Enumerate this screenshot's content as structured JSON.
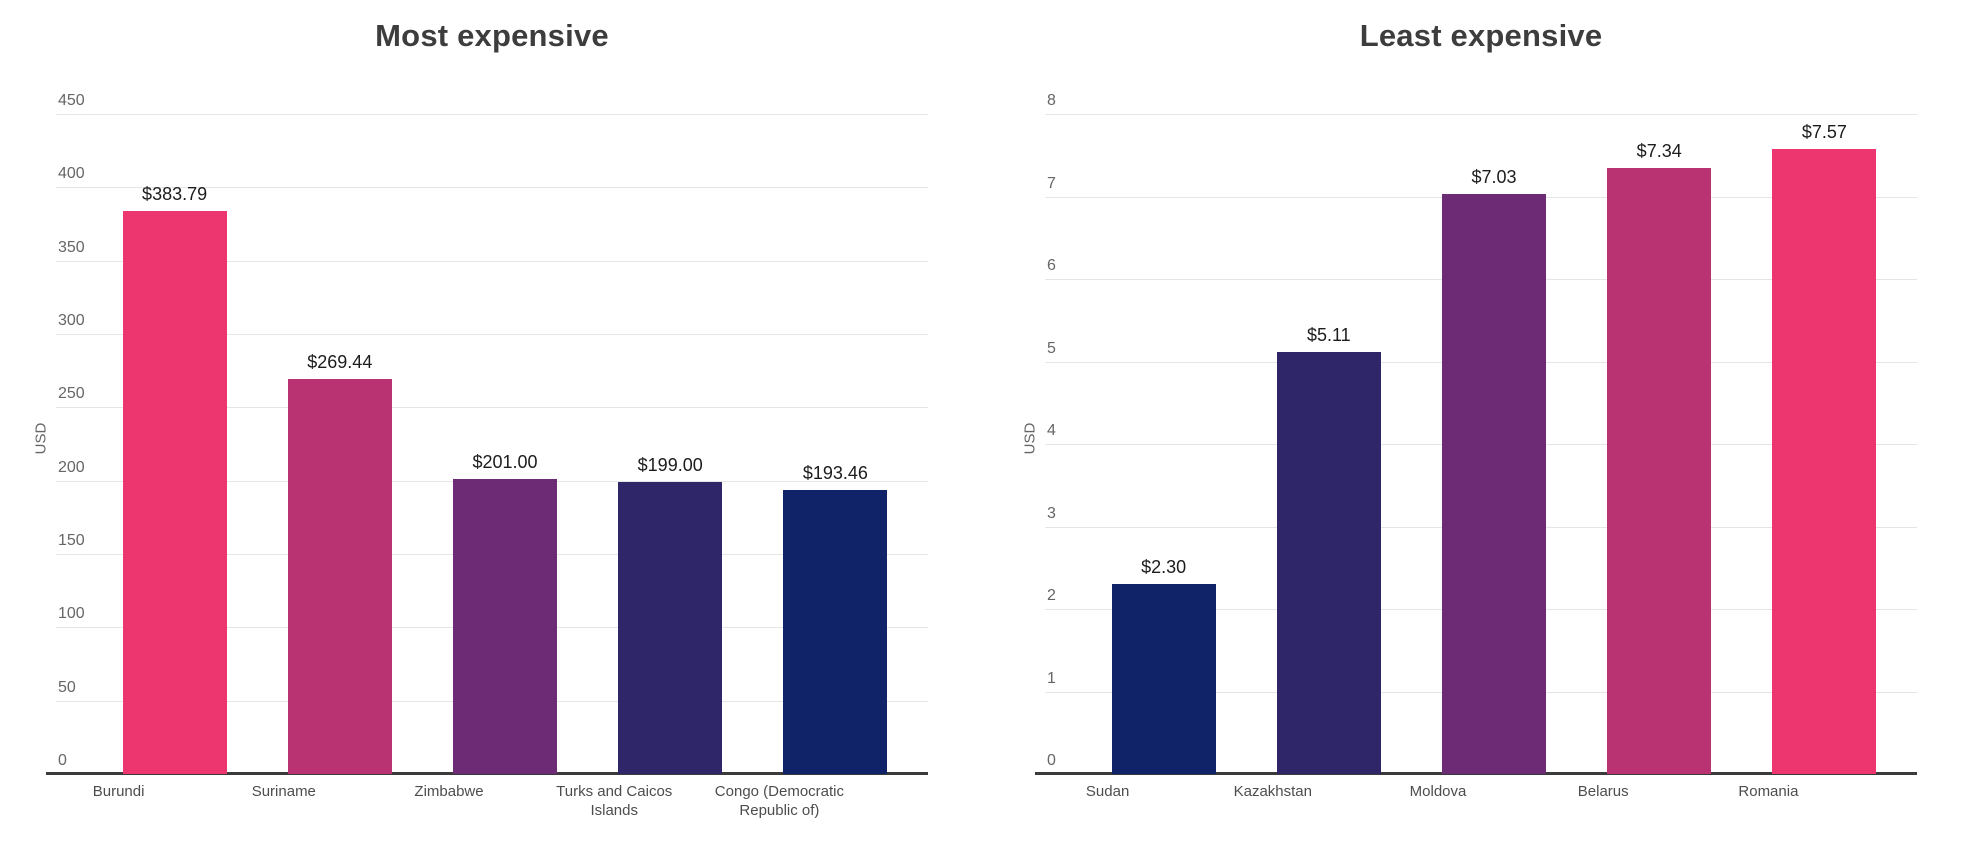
{
  "theme": {
    "background": "#ffffff",
    "title_color": "#3d3d3d",
    "tick_color": "#666666",
    "category_color": "#4d4d4d",
    "value_label_color": "#1c1c1c",
    "gridline_color": "#e5e5e5",
    "axis_line_color": "#3b3b3b",
    "palette": {
      "pink": "#ed3670",
      "magenta": "#b93271",
      "purple": "#6c2b74",
      "indigo": "#2f2569",
      "navy": "#102368"
    }
  },
  "chart_data": [
    {
      "type": "bar",
      "title": "Most expensive",
      "xlabel": "",
      "ylabel": "USD",
      "ylim": [
        0,
        450
      ],
      "ytick_step": 50,
      "grid": true,
      "legend": false,
      "categories": [
        "Burundi",
        "Suriname",
        "Zimbabwe",
        "Turks and Caicos Islands",
        "Congo (Democratic Republic of)"
      ],
      "values": [
        383.79,
        269.44,
        201.0,
        199.0,
        193.46
      ],
      "value_labels": [
        "$383.79",
        "$269.44",
        "$201.00",
        "$199.00",
        "$193.46"
      ],
      "bar_colors": [
        "#ed3670",
        "#b93271",
        "#6c2b74",
        "#2f2569",
        "#102368"
      ]
    },
    {
      "type": "bar",
      "title": "Least expensive",
      "xlabel": "",
      "ylabel": "USD",
      "ylim": [
        0,
        8
      ],
      "ytick_step": 1,
      "grid": true,
      "legend": false,
      "categories": [
        "Sudan",
        "Kazakhstan",
        "Moldova",
        "Belarus",
        "Romania"
      ],
      "values": [
        2.3,
        5.11,
        7.03,
        7.34,
        7.57
      ],
      "value_labels": [
        "$2.30",
        "$5.11",
        "$7.03",
        "$7.34",
        "$7.57"
      ],
      "bar_colors": [
        "#102368",
        "#2f2569",
        "#6c2b74",
        "#b93271",
        "#ed3670"
      ]
    }
  ]
}
